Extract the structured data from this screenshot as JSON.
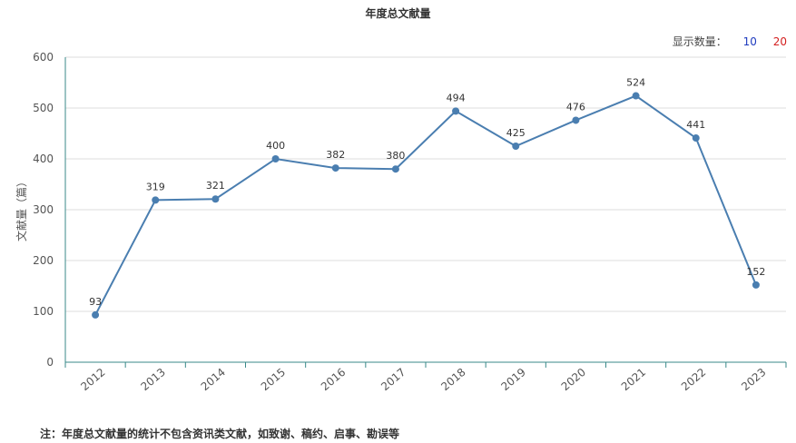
{
  "chart_data": {
    "type": "line",
    "title": "年度总文献量",
    "xlabel": "",
    "ylabel": "文献量（篇）",
    "categories": [
      "2012",
      "2013",
      "2014",
      "2015",
      "2016",
      "2017",
      "2018",
      "2019",
      "2020",
      "2021",
      "2022",
      "2023"
    ],
    "values": [
      93,
      319,
      321,
      400,
      382,
      380,
      494,
      425,
      476,
      524,
      441,
      152
    ],
    "ylim": [
      0,
      600
    ],
    "yticks": [
      0,
      100,
      200,
      300,
      400,
      500,
      600
    ],
    "grid": true,
    "data_labels": true,
    "line_color": "#4a7eb0"
  },
  "display_count": {
    "label": "显示数量：",
    "options": [
      {
        "label": "10",
        "color": "#1f3bbf"
      },
      {
        "label": "20",
        "color": "#d42020"
      }
    ]
  },
  "footnote": "注：年度总文献量的统计不包含资讯类文献，如致谢、稿约、启事、勘误等"
}
